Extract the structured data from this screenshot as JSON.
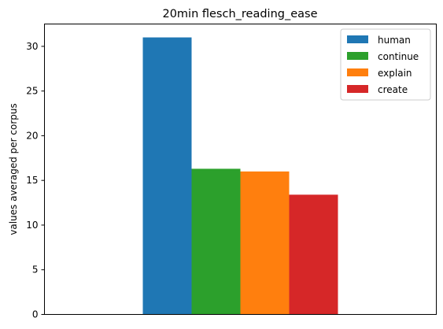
{
  "chart_data": {
    "type": "bar",
    "title": "20min flesch_reading_ease",
    "xlabel": "",
    "ylabel": "values averaged per corpus",
    "categories": [
      ""
    ],
    "series": [
      {
        "name": "human",
        "values": [
          31.0
        ],
        "color": "#1f77b4"
      },
      {
        "name": "continue",
        "values": [
          16.3
        ],
        "color": "#2ca02c"
      },
      {
        "name": "explain",
        "values": [
          16.0
        ],
        "color": "#ff7f0e"
      },
      {
        "name": "create",
        "values": [
          13.4
        ],
        "color": "#d62728"
      }
    ],
    "ylim": [
      0,
      32.5
    ],
    "yticks": [
      "0",
      "5",
      "10",
      "15",
      "20",
      "25",
      "30"
    ],
    "grid": false,
    "legend_position": "top-right"
  }
}
